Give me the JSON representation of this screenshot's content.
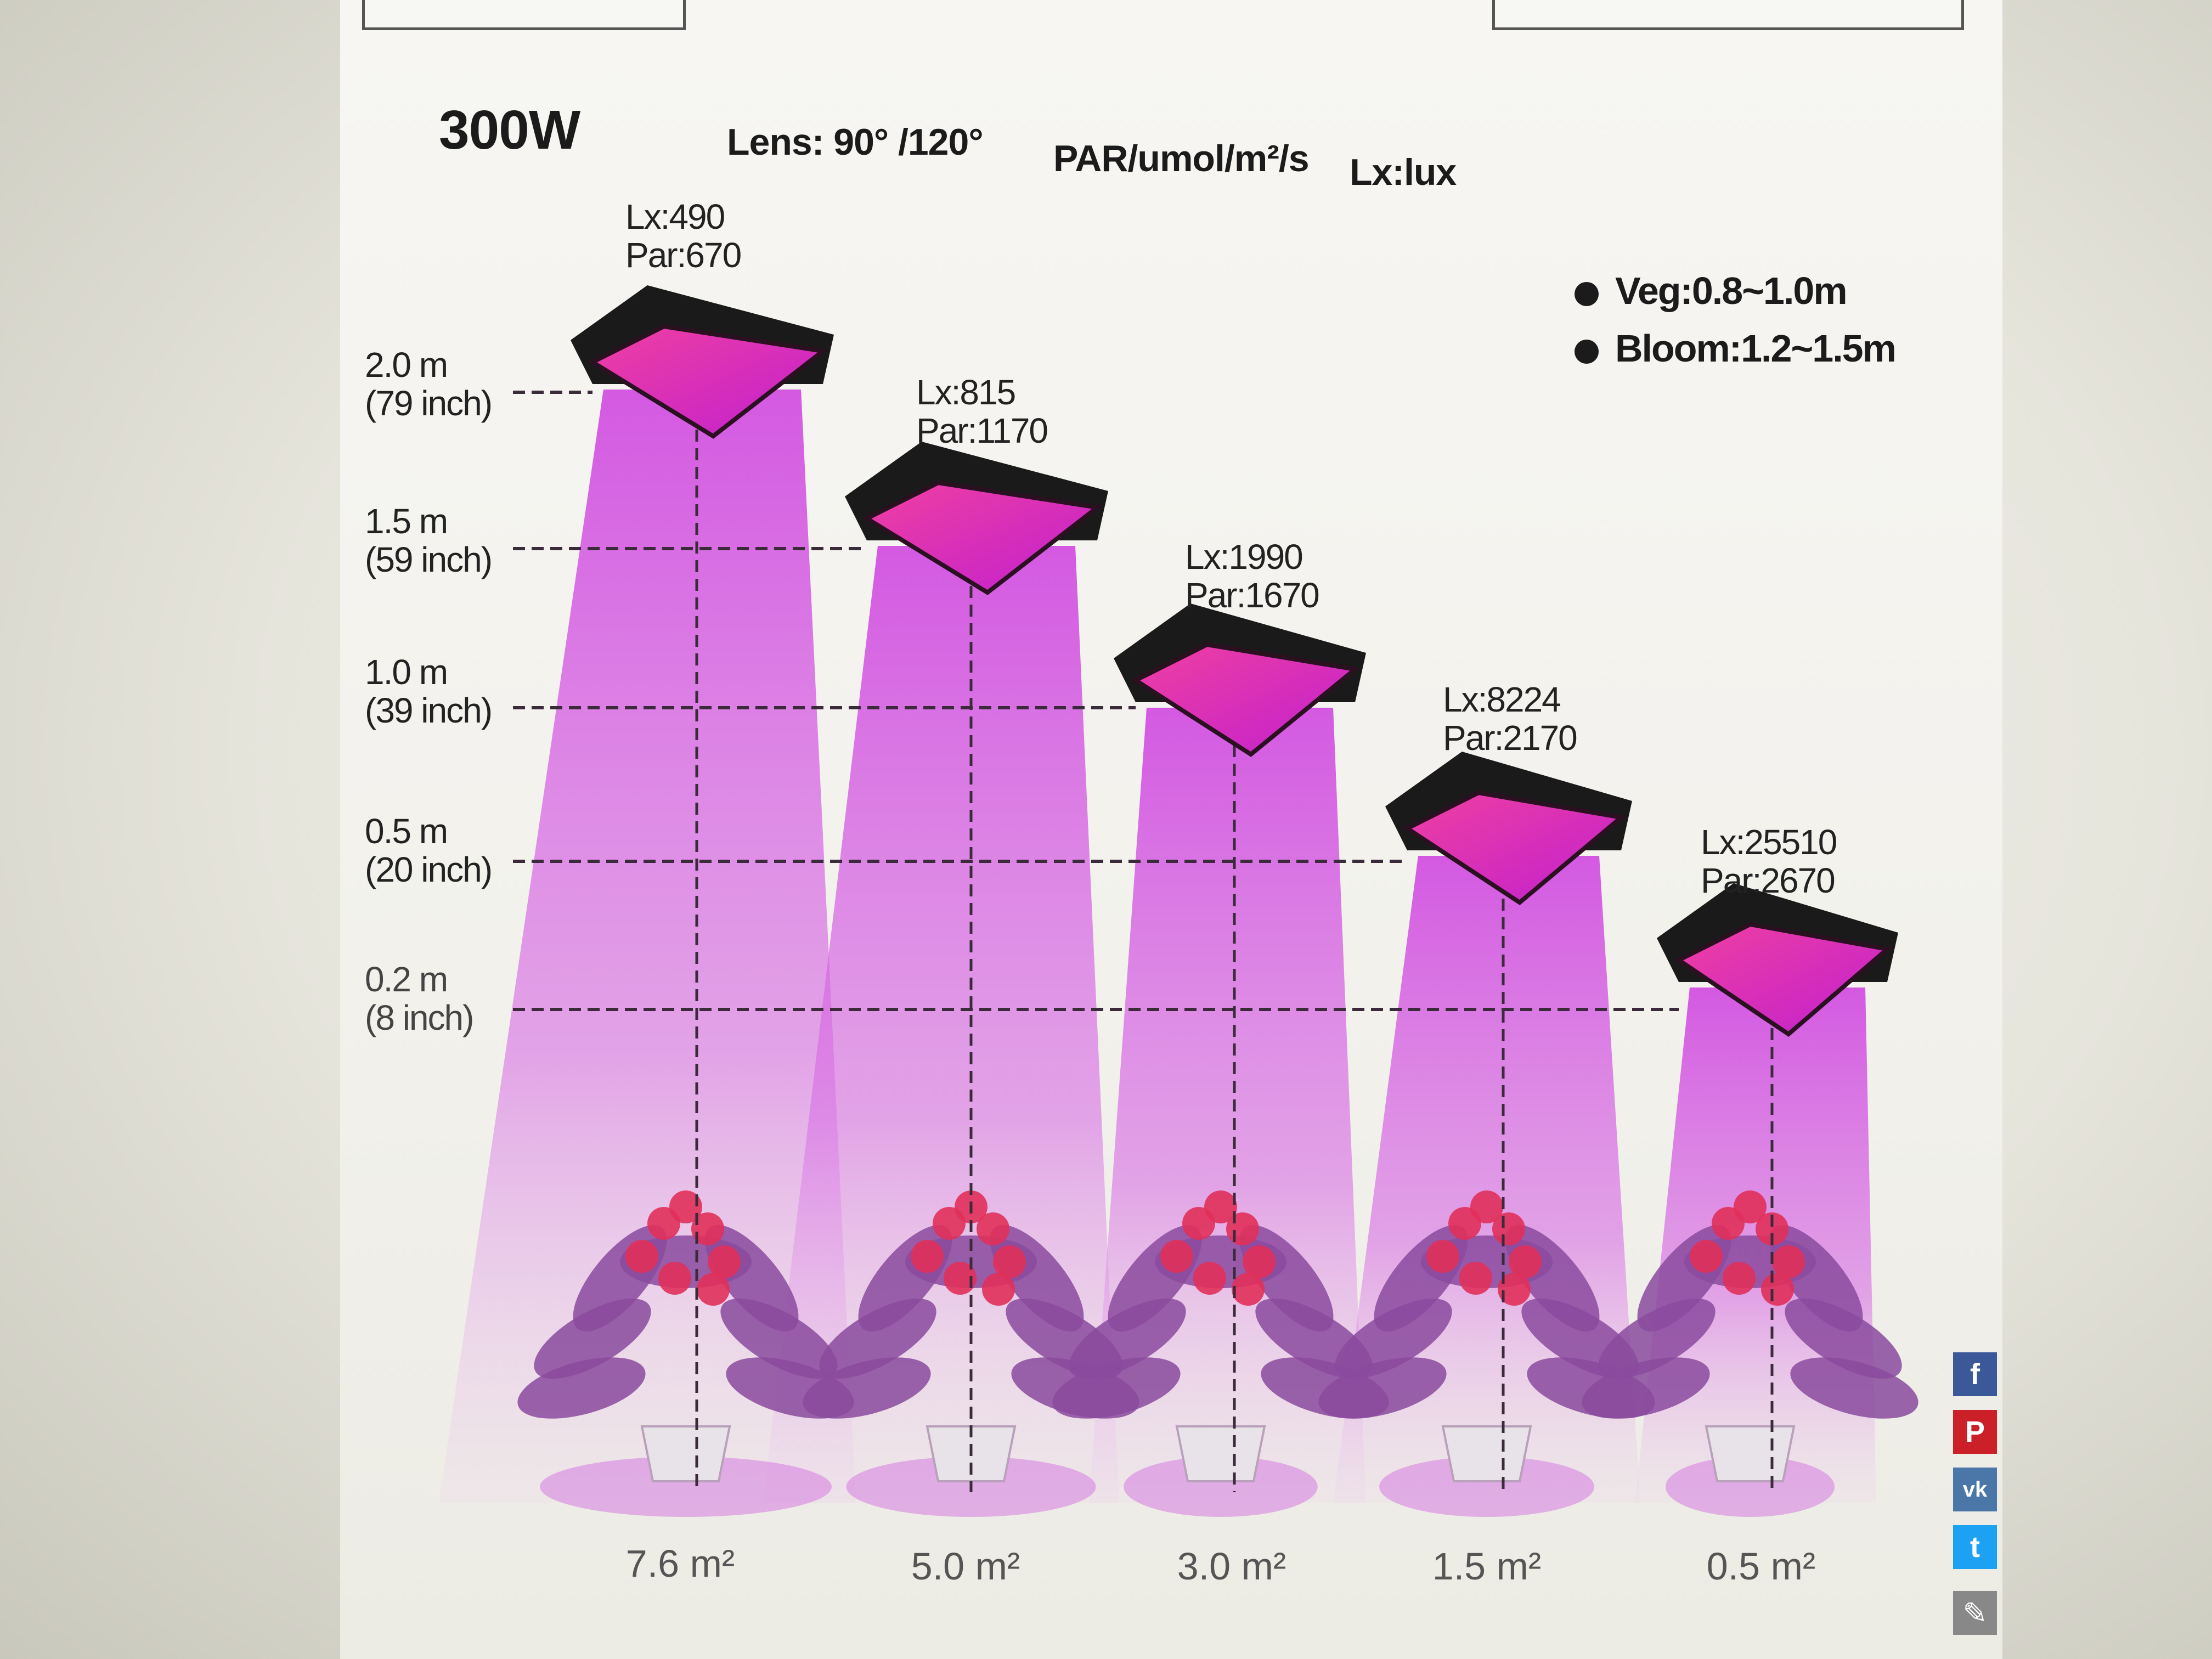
{
  "header": {
    "power": "300W",
    "lens": "Lens: 90° /120°",
    "par_unit": "PAR/umol/m²/s",
    "lux_unit": "Lx:lux"
  },
  "legend": [
    {
      "label": "Veg:0.8~1.0m"
    },
    {
      "label": "Bloom:1.2~1.5m"
    }
  ],
  "heights": [
    {
      "m": "2.0 m",
      "inch": "(79 inch)"
    },
    {
      "m": "1.5 m",
      "inch": "(59 inch)"
    },
    {
      "m": "1.0 m",
      "inch": "(39 inch)"
    },
    {
      "m": "0.5 m",
      "inch": "(20 inch)"
    },
    {
      "m": "0.2 m",
      "inch": "(8 inch)"
    }
  ],
  "lamps": [
    {
      "lx": "Lx:490",
      "par": "Par:670",
      "area": "7.6 m²"
    },
    {
      "lx": "Lx:815",
      "par": "Par:1170",
      "area": "5.0 m²"
    },
    {
      "lx": "Lx:1990",
      "par": "Par:1670",
      "area": "3.0 m²"
    },
    {
      "lx": "Lx:8224",
      "par": "Par:2170",
      "area": "1.5 m²"
    },
    {
      "lx": "Lx:25510",
      "par": "Par:2670",
      "area": "0.5 m²"
    }
  ],
  "social": [
    {
      "icon": "facebook-icon",
      "glyph": "f",
      "color": "#3b5998"
    },
    {
      "icon": "pinterest-icon",
      "glyph": "P",
      "color": "#cb2027"
    },
    {
      "icon": "vk-icon",
      "glyph": "vk",
      "color": "#4a76a8"
    },
    {
      "icon": "twitter-icon",
      "glyph": "t",
      "color": "#1da1f2"
    },
    {
      "icon": "edit-icon",
      "glyph": "✎",
      "color": "#888888"
    }
  ],
  "colors": {
    "beam": "#d048e0",
    "lamp_body": "#1a1a1a",
    "leaf": "#8a4a9e",
    "flower": "#e0305a"
  }
}
